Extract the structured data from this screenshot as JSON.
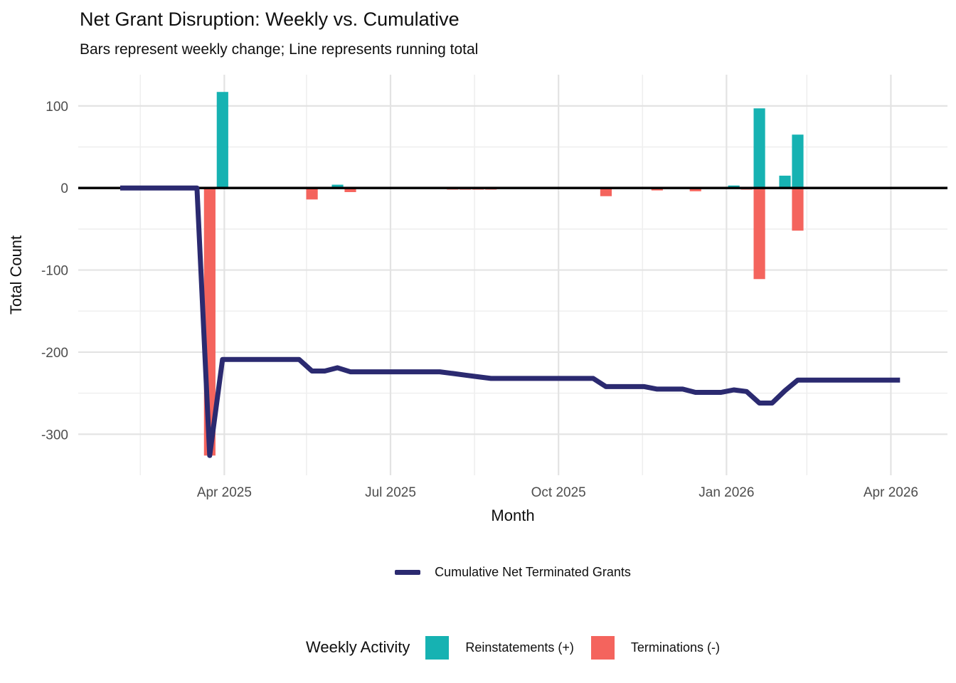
{
  "legend": {
    "weekly_title": "Weekly Activity"
  },
  "colors": {
    "reinstatement_teal": "#16B2B2",
    "termination_red": "#F4645D",
    "cumulative_navy": "#2B2A70",
    "grid_minor": "#EFEFEF",
    "grid_major": "#E3E3E3",
    "zero_axis": "#000000",
    "tick_text": "#4D4D4D"
  },
  "chart_data": {
    "type": "combo",
    "title": "Net Grant Disruption: Weekly vs. Cumulative",
    "subtitle": "Bars represent weekly change; Line represents running total",
    "xlabel": "Month",
    "ylabel": "Total Count",
    "grid": true,
    "legend_position": "bottom",
    "x_domain": [
      "2025-01-11",
      "2026-05-02"
    ],
    "ylim": [
      -350,
      138
    ],
    "y_major_ticks": [
      {
        "value": 100,
        "label": "100"
      },
      {
        "value": 0,
        "label": "0"
      },
      {
        "value": -100,
        "label": "-100"
      },
      {
        "value": -200,
        "label": "-200"
      },
      {
        "value": -300,
        "label": "-300"
      }
    ],
    "y_minor_ticks": [
      50,
      -50,
      -150,
      -250
    ],
    "x_major_ticks": [
      {
        "date": "2025-04-01",
        "label": "Apr 2025"
      },
      {
        "date": "2025-07-01",
        "label": "Jul 2025"
      },
      {
        "date": "2025-10-01",
        "label": "Oct 2025"
      },
      {
        "date": "2026-01-01",
        "label": "Jan 2026"
      },
      {
        "date": "2026-04-01",
        "label": "Apr 2026"
      }
    ],
    "x_minor_ticks": [
      "2025-02-14",
      "2025-05-16",
      "2025-08-16",
      "2025-11-16",
      "2026-02-14"
    ],
    "bar_width_days": 6.3,
    "zero_line": 0,
    "series": [
      {
        "name": "Reinstatements (+)",
        "type": "bar",
        "color": "#16B2B2",
        "points": [
          [
            "2025-03-31",
            117
          ],
          [
            "2025-06-02",
            4
          ],
          [
            "2026-01-05",
            3
          ],
          [
            "2026-01-19",
            97
          ],
          [
            "2026-02-02",
            15
          ],
          [
            "2026-02-09",
            65
          ]
        ]
      },
      {
        "name": "Terminations (-)",
        "type": "bar",
        "color": "#F4645D",
        "points": [
          [
            "2025-03-24",
            -326
          ],
          [
            "2025-05-19",
            -14
          ],
          [
            "2025-06-09",
            -5
          ],
          [
            "2025-08-04",
            -2
          ],
          [
            "2025-08-11",
            -2
          ],
          [
            "2025-08-18",
            -2
          ],
          [
            "2025-08-25",
            -2
          ],
          [
            "2025-10-27",
            -10
          ],
          [
            "2025-11-24",
            -3
          ],
          [
            "2025-12-15",
            -4
          ],
          [
            "2026-01-12",
            -2
          ],
          [
            "2026-01-19",
            -111
          ],
          [
            "2026-02-09",
            -52
          ]
        ]
      },
      {
        "name": "Cumulative Net Terminated Grants",
        "type": "line",
        "color": "#2B2A70",
        "points": [
          [
            "2025-02-03",
            0
          ],
          [
            "2025-02-10",
            0
          ],
          [
            "2025-02-17",
            0
          ],
          [
            "2025-02-24",
            0
          ],
          [
            "2025-03-03",
            0
          ],
          [
            "2025-03-10",
            0
          ],
          [
            "2025-03-17",
            0
          ],
          [
            "2025-03-24",
            -326
          ],
          [
            "2025-03-31",
            -209
          ],
          [
            "2025-04-07",
            -209
          ],
          [
            "2025-04-14",
            -209
          ],
          [
            "2025-04-21",
            -209
          ],
          [
            "2025-04-28",
            -209
          ],
          [
            "2025-05-05",
            -209
          ],
          [
            "2025-05-12",
            -209
          ],
          [
            "2025-05-19",
            -223
          ],
          [
            "2025-05-26",
            -223
          ],
          [
            "2025-06-02",
            -219
          ],
          [
            "2025-06-09",
            -224
          ],
          [
            "2025-06-16",
            -224
          ],
          [
            "2025-06-23",
            -224
          ],
          [
            "2025-06-30",
            -224
          ],
          [
            "2025-07-07",
            -224
          ],
          [
            "2025-07-14",
            -224
          ],
          [
            "2025-07-21",
            -224
          ],
          [
            "2025-07-28",
            -224
          ],
          [
            "2025-08-04",
            -226
          ],
          [
            "2025-08-11",
            -228
          ],
          [
            "2025-08-18",
            -230
          ],
          [
            "2025-08-25",
            -232
          ],
          [
            "2025-09-01",
            -232
          ],
          [
            "2025-09-08",
            -232
          ],
          [
            "2025-09-15",
            -232
          ],
          [
            "2025-09-22",
            -232
          ],
          [
            "2025-09-29",
            -232
          ],
          [
            "2025-10-06",
            -232
          ],
          [
            "2025-10-13",
            -232
          ],
          [
            "2025-10-20",
            -232
          ],
          [
            "2025-10-27",
            -242
          ],
          [
            "2025-11-03",
            -242
          ],
          [
            "2025-11-10",
            -242
          ],
          [
            "2025-11-17",
            -242
          ],
          [
            "2025-11-24",
            -245
          ],
          [
            "2025-12-01",
            -245
          ],
          [
            "2025-12-08",
            -245
          ],
          [
            "2025-12-15",
            -249
          ],
          [
            "2025-12-22",
            -249
          ],
          [
            "2025-12-29",
            -249
          ],
          [
            "2026-01-05",
            -246
          ],
          [
            "2026-01-12",
            -248
          ],
          [
            "2026-01-19",
            -262
          ],
          [
            "2026-01-26",
            -262
          ],
          [
            "2026-02-02",
            -247
          ],
          [
            "2026-02-09",
            -234
          ],
          [
            "2026-02-16",
            -234
          ],
          [
            "2026-02-23",
            -234
          ],
          [
            "2026-03-02",
            -234
          ],
          [
            "2026-03-09",
            -234
          ],
          [
            "2026-03-16",
            -234
          ],
          [
            "2026-03-23",
            -234
          ],
          [
            "2026-03-30",
            -234
          ],
          [
            "2026-04-06",
            -234
          ]
        ]
      }
    ]
  }
}
